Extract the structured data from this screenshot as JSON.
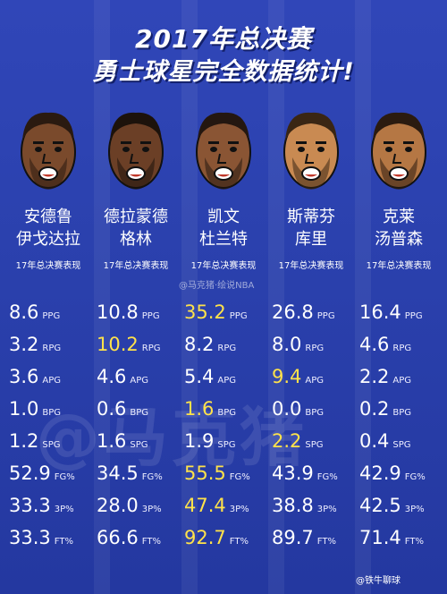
{
  "title": {
    "line1": "2017年总决赛",
    "line2": "勇士球星完全数据统计!"
  },
  "watermark_small": "@马克猪·绘说NBA",
  "watermark_big": "@马克猪",
  "source_tag": "@铁牛聊球",
  "highlight_color": "#ffe24a",
  "players": [
    {
      "name1": "安德鲁",
      "name2": "伊戈达拉",
      "subtitle": "17年总决赛表现",
      "stats": [
        {
          "value": "8.6",
          "unit": "PPG"
        },
        {
          "value": "3.2",
          "unit": "RPG"
        },
        {
          "value": "3.6",
          "unit": "APG"
        },
        {
          "value": "1.0",
          "unit": "BPG"
        },
        {
          "value": "1.2",
          "unit": "SPG"
        },
        {
          "value": "52.9",
          "unit": "FG%"
        },
        {
          "value": "33.3",
          "unit": "3P%"
        },
        {
          "value": "33.3",
          "unit": "FT%"
        }
      ]
    },
    {
      "name1": "德拉蒙德",
      "name2": "格林",
      "subtitle": "17年总决赛表现",
      "stats": [
        {
          "value": "10.8",
          "unit": "PPG"
        },
        {
          "value": "10.2",
          "unit": "RPG",
          "highlight": true
        },
        {
          "value": "4.6",
          "unit": "APG"
        },
        {
          "value": "0.6",
          "unit": "BPG"
        },
        {
          "value": "1.6",
          "unit": "SPG"
        },
        {
          "value": "34.5",
          "unit": "FG%"
        },
        {
          "value": "28.0",
          "unit": "3P%"
        },
        {
          "value": "66.6",
          "unit": "FT%"
        }
      ]
    },
    {
      "name1": "凯文",
      "name2": "杜兰特",
      "subtitle": "17年总决赛表现",
      "stats": [
        {
          "value": "35.2",
          "unit": "PPG",
          "highlight": true
        },
        {
          "value": "8.2",
          "unit": "RPG"
        },
        {
          "value": "5.4",
          "unit": "APG"
        },
        {
          "value": "1.6",
          "unit": "BPG",
          "highlight": true
        },
        {
          "value": "1.9",
          "unit": "SPG"
        },
        {
          "value": "55.5",
          "unit": "FG%",
          "highlight": true
        },
        {
          "value": "47.4",
          "unit": "3P%",
          "highlight": true
        },
        {
          "value": "92.7",
          "unit": "FT%",
          "highlight": true
        }
      ]
    },
    {
      "name1": "斯蒂芬",
      "name2": "库里",
      "subtitle": "17年总决赛表现",
      "stats": [
        {
          "value": "26.8",
          "unit": "PPG"
        },
        {
          "value": "8.0",
          "unit": "RPG"
        },
        {
          "value": "9.4",
          "unit": "APG",
          "highlight": true
        },
        {
          "value": "0.0",
          "unit": "BPG"
        },
        {
          "value": "2.2",
          "unit": "SPG",
          "highlight": true
        },
        {
          "value": "43.9",
          "unit": "FG%"
        },
        {
          "value": "38.8",
          "unit": "3P%"
        },
        {
          "value": "89.7",
          "unit": "FT%"
        }
      ]
    },
    {
      "name1": "克莱",
      "name2": "汤普森",
      "subtitle": "17年总决赛表现",
      "stats": [
        {
          "value": "16.4",
          "unit": "PPG"
        },
        {
          "value": "4.6",
          "unit": "RPG"
        },
        {
          "value": "2.2",
          "unit": "APG"
        },
        {
          "value": "0.2",
          "unit": "BPG"
        },
        {
          "value": "0.4",
          "unit": "SPG"
        },
        {
          "value": "42.9",
          "unit": "FG%"
        },
        {
          "value": "42.5",
          "unit": "3P%"
        },
        {
          "value": "71.4",
          "unit": "FT%"
        }
      ]
    }
  ]
}
